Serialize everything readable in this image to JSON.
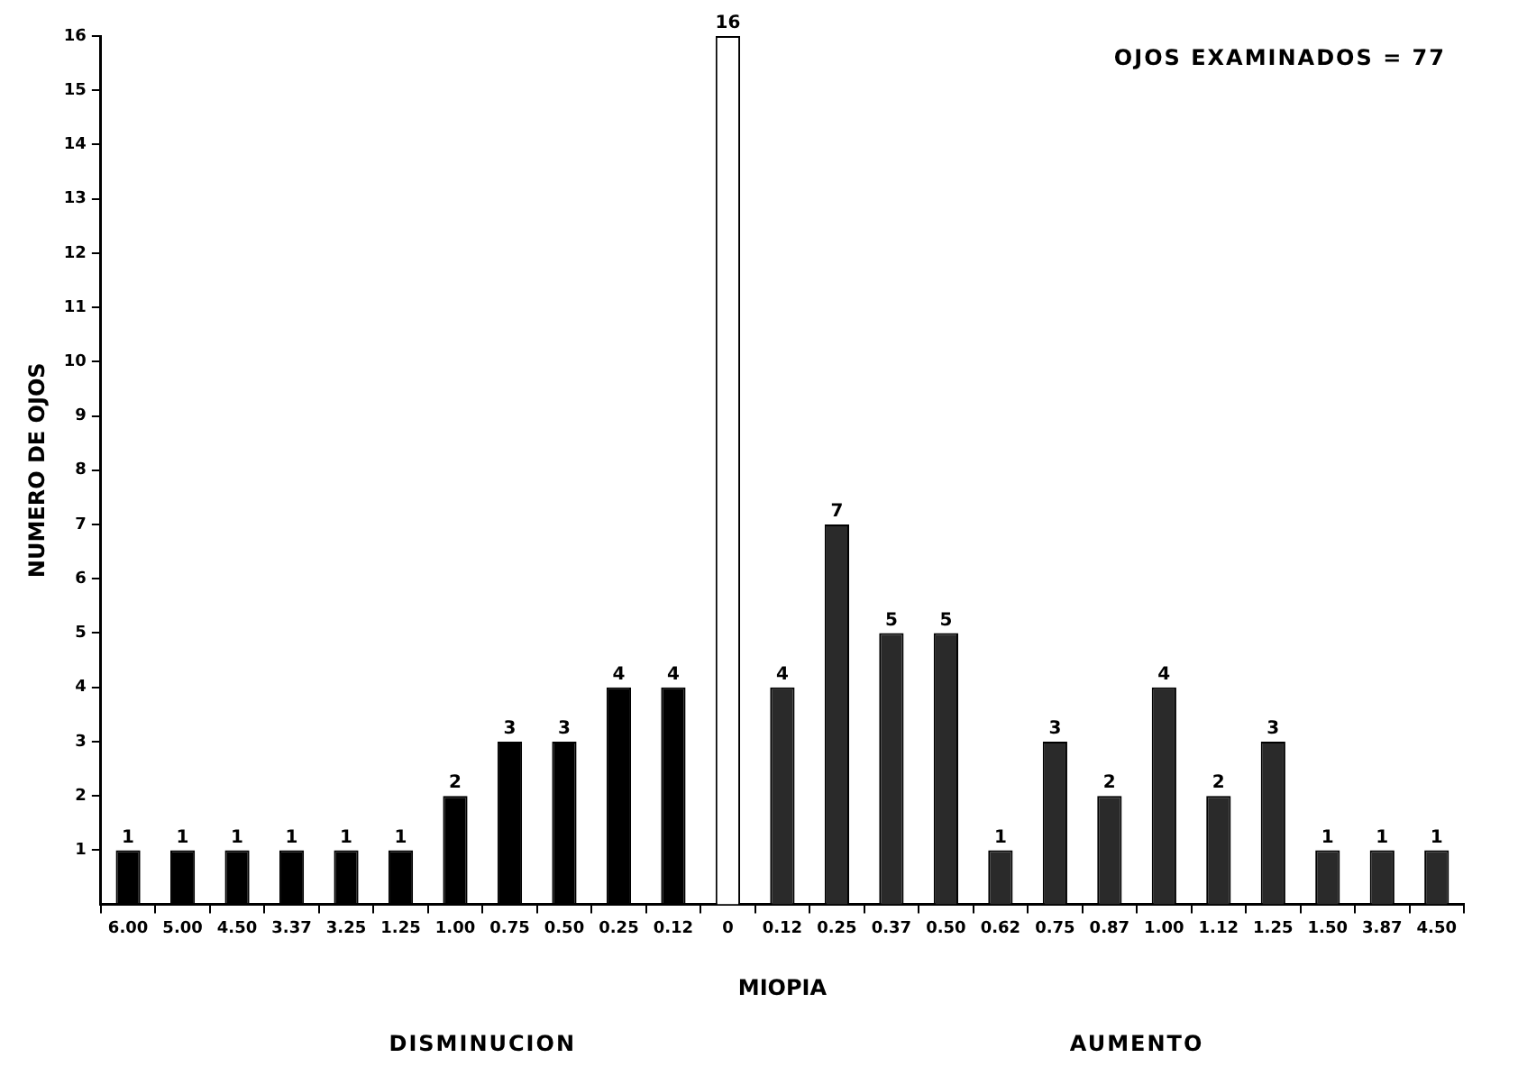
{
  "chart_data": {
    "type": "bar",
    "xlabel": "MIOPIA",
    "ylabel": "NUMERO DE OJOS",
    "categories": [
      "6.00",
      "5.00",
      "4.50",
      "3.37",
      "3.25",
      "1.25",
      "1.00",
      "0.75",
      "0.50",
      "0.25",
      "0.12",
      "0",
      "0.12",
      "0.25",
      "0.37",
      "0.50",
      "0.62",
      "0.75",
      "0.87",
      "1.00",
      "1.12",
      "1.25",
      "1.50",
      "3.87",
      "4.50"
    ],
    "values": [
      1,
      1,
      1,
      1,
      1,
      1,
      2,
      3,
      3,
      4,
      4,
      16,
      4,
      7,
      5,
      5,
      1,
      3,
      2,
      4,
      2,
      3,
      1,
      1,
      1
    ],
    "colors": [
      "#000000",
      "#000000",
      "#000000",
      "#000000",
      "#000000",
      "#000000",
      "#000000",
      "#000000",
      "#000000",
      "#000000",
      "#000000",
      "#ffffff",
      "#2a2a2a",
      "#2a2a2a",
      "#2a2a2a",
      "#2a2a2a",
      "#2a2a2a",
      "#2a2a2a",
      "#2a2a2a",
      "#2a2a2a",
      "#2a2a2a",
      "#2a2a2a",
      "#2a2a2a",
      "#2a2a2a",
      "#2a2a2a"
    ],
    "ylim": [
      0,
      16
    ],
    "yticks": [
      1,
      2,
      3,
      4,
      5,
      6,
      7,
      8,
      9,
      10,
      11,
      12,
      13,
      14,
      15,
      16
    ],
    "grid": false,
    "legend": false,
    "data_labels": true,
    "annotations": [
      "OJOS EXAMINADOS = 77",
      "DISMINUCION",
      "AUMENTO"
    ]
  }
}
